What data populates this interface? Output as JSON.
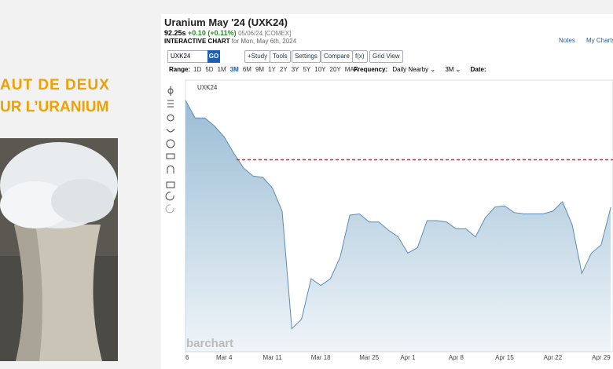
{
  "page": {
    "left_heading": [
      "AUT DE DEUX",
      "UR L’URANIUM"
    ],
    "header": {
      "title": "Uranium May '24 (UXK24)",
      "price": "92.25s",
      "change": "+0.10 (+0.11%)",
      "date": "05/06/24 [COMEX]",
      "subtitle": "INTERACTIVE CHART",
      "subtitle_date": "for Mon, May 6th, 2024",
      "notes": "Notes",
      "my_charts": "My Charts"
    },
    "toolbar": {
      "symbol": "UXK24",
      "go": "GO",
      "buttons": [
        "+Study",
        "Tools",
        "Settings",
        "Compare",
        "f(x)",
        "Grid View"
      ],
      "range_label": "Range:",
      "ranges": [
        "1D",
        "5D",
        "1M",
        "3M",
        "6M",
        "9M",
        "1Y",
        "2Y",
        "3Y",
        "5Y",
        "10Y",
        "20Y",
        "MAX"
      ],
      "frequency_label": "Frequency:",
      "frequency": "Daily Nearby",
      "period": "3M",
      "date_label": "Date:"
    },
    "legend_symbol": "UXK24",
    "watermark": "barchart"
  },
  "chart_data": {
    "type": "area",
    "color": "#7aa7c7",
    "categories": [
      "6",
      null,
      null,
      null,
      "Mar 4",
      null,
      null,
      null,
      null,
      "Mar 11",
      null,
      null,
      null,
      null,
      "Mar 18",
      null,
      null,
      null,
      null,
      "Mar 25",
      null,
      null,
      null,
      "Apr 1",
      null,
      null,
      null,
      null,
      "Apr 8",
      null,
      null,
      null,
      null,
      "Apr 15",
      null,
      null,
      null,
      null,
      "Apr 22",
      null,
      null,
      null,
      null,
      "Apr 29",
      null
    ],
    "values": [
      101.0,
      99.7,
      99.7,
      99.1,
      98.3,
      97.1,
      96.0,
      95.4,
      95.3,
      94.5,
      92.8,
      84.1,
      84.8,
      87.8,
      87.3,
      87.8,
      89.4,
      92.5,
      92.6,
      92.0,
      92.0,
      91.4,
      90.9,
      89.7,
      90.1,
      92.1,
      92.1,
      92.0,
      91.5,
      91.5,
      90.9,
      92.3,
      93.1,
      93.2,
      92.7,
      92.6,
      92.6,
      92.6,
      92.8,
      93.5,
      91.8,
      88.2,
      89.7,
      90.3,
      93.1
    ],
    "ylim": [
      82.4,
      102.5
    ],
    "reference_line": 96.6,
    "reference_color": "#d62728"
  }
}
